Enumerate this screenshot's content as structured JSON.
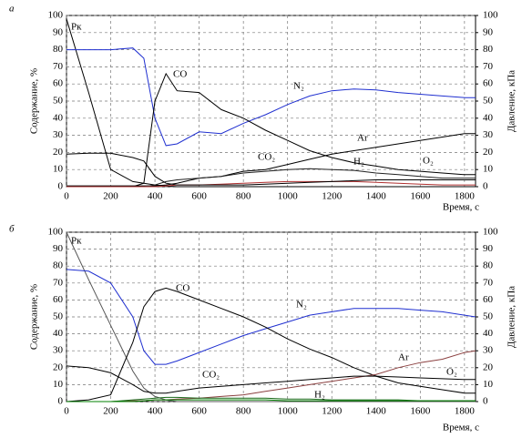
{
  "chart_data": [
    {
      "type": "line",
      "panel_label": "а",
      "xlabel": "Время, с",
      "ylabel": "Содержание, %",
      "y2label": "Давление, кПа",
      "x": [
        0,
        100,
        200,
        300,
        350,
        400,
        450,
        500,
        600,
        700,
        800,
        900,
        1000,
        1100,
        1200,
        1300,
        1400,
        1500,
        1600,
        1700,
        1800,
        1850
      ],
      "xlim": [
        0,
        1850
      ],
      "xticks": [
        0,
        200,
        400,
        600,
        800,
        1000,
        1200,
        1400,
        1600,
        1800
      ],
      "ylim": [
        0,
        100
      ],
      "yticks": [
        0,
        10,
        20,
        30,
        40,
        50,
        60,
        70,
        80,
        90,
        100
      ],
      "y2lim": [
        0,
        100
      ],
      "y2ticks": [
        0,
        10,
        20,
        30,
        40,
        50,
        60,
        70,
        80,
        90,
        100
      ],
      "grid": true,
      "series": [
        {
          "name": "Pк",
          "color": "#000000",
          "axis": "y2",
          "values": [
            98,
            55,
            10,
            3,
            2,
            1,
            0.5,
            0,
            0,
            0,
            0,
            0,
            0,
            0,
            0,
            0,
            0,
            0,
            0,
            0,
            0,
            0
          ]
        },
        {
          "name": "N₂",
          "color": "#1f2fd0",
          "values": [
            80,
            80,
            80,
            81,
            75,
            40,
            24,
            25,
            32,
            31,
            37,
            42,
            48,
            53,
            56,
            57,
            56.5,
            55,
            54,
            53,
            52,
            52
          ]
        },
        {
          "name": "CO",
          "color": "#000000",
          "values": [
            0,
            0,
            0,
            0,
            2,
            50,
            66,
            56,
            55,
            45,
            40,
            33,
            27,
            21,
            17,
            14,
            12,
            10,
            9,
            8,
            7,
            7
          ]
        },
        {
          "name": "Ar",
          "color": "#000000",
          "values": [
            0.5,
            0.5,
            0.5,
            0.5,
            0.5,
            0.5,
            1,
            2,
            5,
            6,
            9,
            10,
            13,
            16,
            19,
            21,
            23,
            25,
            27,
            29,
            31,
            31
          ]
        },
        {
          "name": "CO₂",
          "color": "#202020",
          "values": [
            0,
            0,
            0,
            0,
            0,
            1,
            3,
            4,
            5,
            6,
            8,
            9,
            10,
            10.5,
            10,
            9.5,
            8,
            7,
            6,
            5,
            5,
            5
          ]
        },
        {
          "name": "H₂",
          "color": "#b03030",
          "values": [
            0,
            0,
            0,
            0,
            0,
            0,
            0.5,
            1,
            1,
            1.5,
            2,
            2.5,
            3,
            3,
            3,
            3,
            2.5,
            2,
            1.5,
            1,
            1,
            1
          ]
        },
        {
          "name": "O₂",
          "color": "#000000",
          "values": [
            19,
            19.5,
            19.5,
            17,
            15,
            6,
            2,
            1,
            1,
            1,
            1,
            1.5,
            2,
            2.5,
            3,
            3.5,
            4,
            4,
            4,
            4,
            4,
            4
          ]
        }
      ]
    },
    {
      "type": "line",
      "panel_label": "б",
      "xlabel": "Время, с",
      "ylabel": "Содержание, %",
      "y2label": "Давление, кПа",
      "x": [
        0,
        100,
        200,
        300,
        350,
        400,
        450,
        500,
        600,
        700,
        800,
        900,
        1000,
        1100,
        1200,
        1300,
        1400,
        1500,
        1600,
        1700,
        1800,
        1850
      ],
      "xlim": [
        0,
        1850
      ],
      "xticks": [
        0,
        200,
        400,
        600,
        800,
        1000,
        1200,
        1400,
        1600,
        1800
      ],
      "ylim": [
        0,
        100
      ],
      "yticks": [
        0,
        10,
        20,
        30,
        40,
        50,
        60,
        70,
        80,
        90,
        100
      ],
      "y2lim": [
        0,
        100
      ],
      "y2ticks": [
        0,
        10,
        20,
        30,
        40,
        50,
        60,
        70,
        80,
        90,
        100
      ],
      "grid": true,
      "series": [
        {
          "name": "Pк",
          "color": "#555555",
          "axis": "y2",
          "values": [
            100,
            72,
            45,
            18,
            8,
            3,
            1,
            0,
            0,
            0,
            0,
            0,
            0,
            0,
            0,
            0,
            0,
            0,
            0,
            0,
            0,
            0
          ]
        },
        {
          "name": "N₂",
          "color": "#1f2fd0",
          "values": [
            78,
            77,
            70,
            50,
            30,
            22,
            22,
            24,
            29,
            34,
            39,
            43,
            47,
            51,
            53,
            55,
            55,
            55,
            54,
            53,
            51,
            50
          ]
        },
        {
          "name": "CO",
          "color": "#000000",
          "values": [
            0,
            1,
            4,
            35,
            56,
            65,
            67,
            65,
            60,
            55,
            50,
            44,
            37,
            31,
            26,
            20,
            15,
            11,
            9,
            7,
            5,
            5
          ]
        },
        {
          "name": "Ar",
          "color": "#8b4040",
          "values": [
            0,
            0,
            0,
            0.5,
            0.5,
            1,
            1,
            1.5,
            2,
            3,
            4,
            6,
            8,
            10,
            12,
            14,
            16,
            20,
            23,
            25,
            29,
            30
          ]
        },
        {
          "name": "CO₂",
          "color": "#1a6a1a",
          "values": [
            0,
            0,
            0,
            1,
            1.5,
            2,
            2.5,
            2.5,
            2,
            2,
            2,
            2,
            1.5,
            1.5,
            1,
            1,
            1,
            1,
            0.5,
            0.5,
            0.5,
            0.5
          ]
        },
        {
          "name": "H₂",
          "color": "#008000",
          "values": [
            0,
            0,
            0,
            0,
            0.5,
            1,
            1,
            1,
            1,
            1,
            1,
            1,
            0.5,
            0.5,
            0.5,
            0.5,
            0.5,
            0.5,
            0.5,
            0.5,
            0.5,
            0.5
          ]
        },
        {
          "name": "O₂",
          "color": "#000000",
          "values": [
            21,
            20,
            17,
            10,
            6,
            5,
            5,
            6,
            8,
            9,
            10,
            11,
            12,
            13,
            14,
            15,
            15,
            14.5,
            14,
            13.5,
            13,
            13
          ]
        }
      ]
    }
  ]
}
